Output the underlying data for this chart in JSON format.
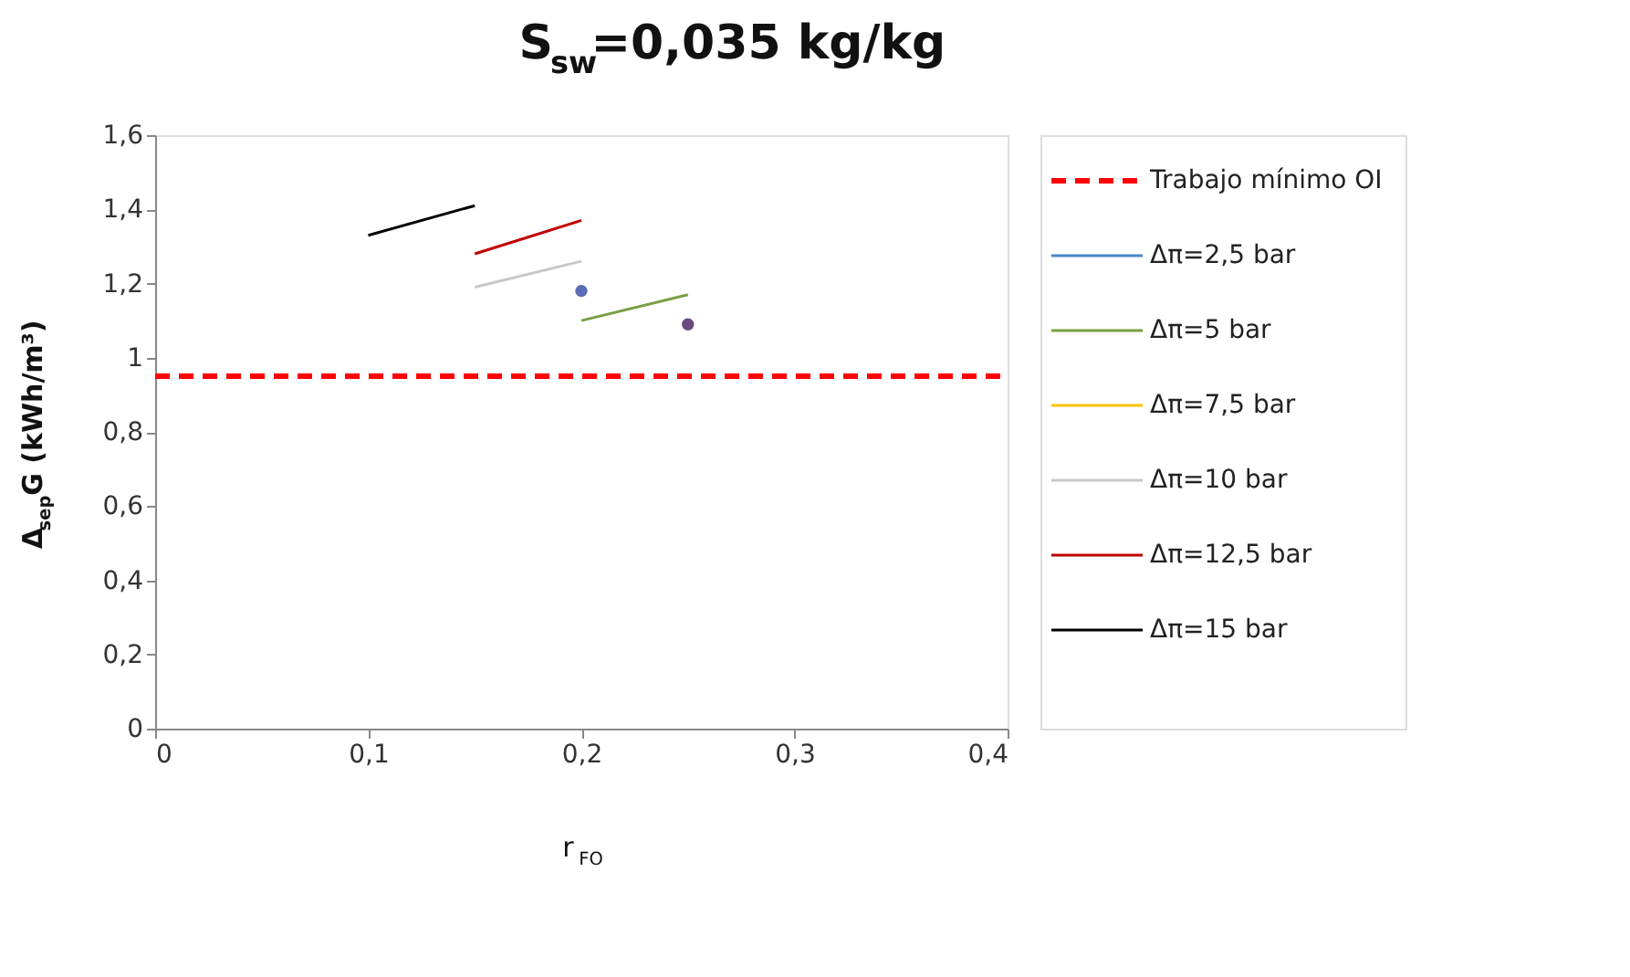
{
  "chart_data": {
    "type": "line",
    "title": "S$_{sw}$=0,035 kg/kg",
    "xlabel": "r$_{FO}$",
    "ylabel": "Δ$_{sep}$G (kWh/m³)",
    "xlim": [
      0,
      0.4
    ],
    "xticks": [
      0,
      {
        "value": 0.1,
        "label": "0,1"
      },
      {
        "value": 0.2,
        "label": "0,2"
      },
      {
        "value": 0.3,
        "label": "0,3"
      },
      {
        "value": 0.4,
        "label": "0,4"
      }
    ],
    "ylim": [
      0,
      1.6
    ],
    "yticks": [
      0,
      {
        "value": 0.2,
        "label": "0,2"
      },
      {
        "value": 0.4,
        "label": "0,4"
      },
      {
        "value": 0.6,
        "label": "0,6"
      },
      {
        "value": 0.8,
        "label": "0,8"
      },
      1,
      {
        "value": 1.2,
        "label": "1,2"
      },
      {
        "value": 1.4,
        "label": "1,4"
      },
      {
        "value": 1.6,
        "label": "1,6"
      }
    ],
    "grid": false,
    "legend": "right",
    "ref_lines": [
      {
        "axis": "y",
        "value": 0.95,
        "label": "Trabajo mínimo OI",
        "color": "#ff0000",
        "line_style": "dashed"
      }
    ],
    "series": [
      {
        "name": "Δπ=2,5 bar",
        "color": "#4a86c8"
      },
      {
        "name": "Δπ=5 bar",
        "color": "#77a043",
        "x": [
          0.2,
          0.25
        ],
        "values": [
          1.1,
          1.17
        ]
      },
      {
        "name": "Δπ=7,5 bar",
        "color": "#ffc000"
      },
      {
        "name": "Δπ=10 bar",
        "color": "#c8c8c8",
        "x": [
          0.15,
          0.2
        ],
        "values": [
          1.19,
          1.26
        ]
      },
      {
        "name": "Δπ=12,5 bar",
        "color": "#c00000",
        "x": [
          0.15,
          0.2
        ],
        "values": [
          1.28,
          1.37
        ]
      },
      {
        "name": "Δπ=15 bar",
        "color": "#000000",
        "x": [
          0.1,
          0.15
        ],
        "values": [
          1.33,
          1.41
        ]
      },
      {
        "type": "scatter",
        "color": "#5b6bb5",
        "x": [
          0.2
        ],
        "values": [
          1.18
        ]
      },
      {
        "type": "scatter",
        "color": "#6a4a80",
        "x": [
          0.25
        ],
        "values": [
          1.09
        ]
      }
    ]
  }
}
